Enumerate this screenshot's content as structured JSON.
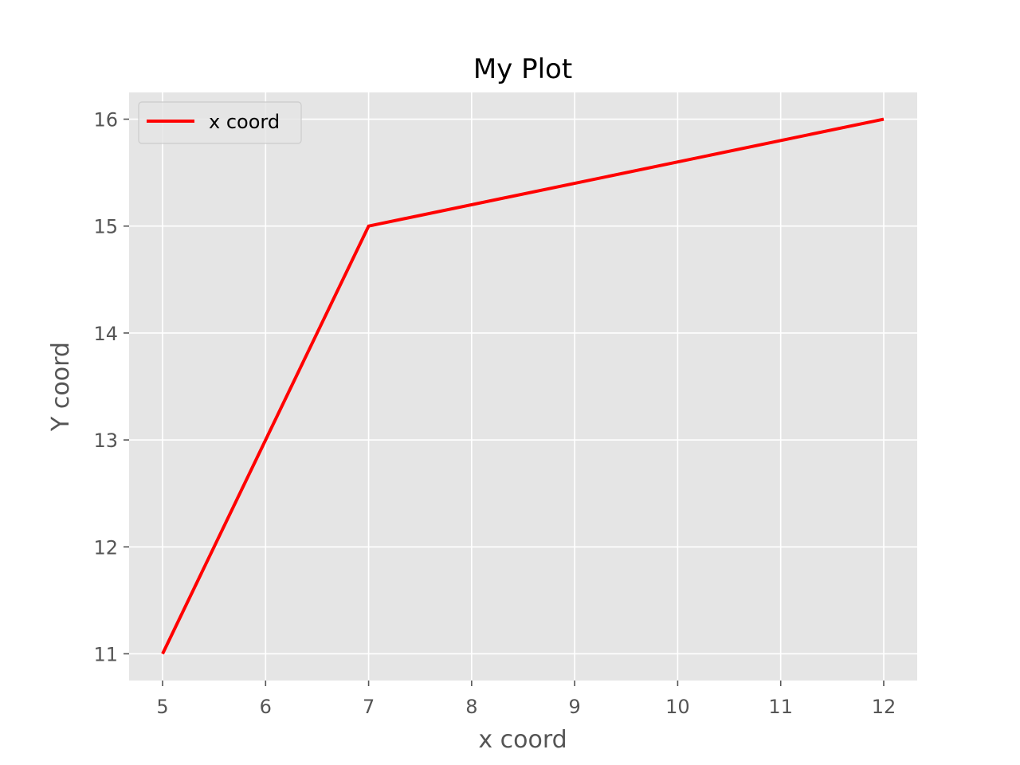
{
  "chart_data": {
    "type": "line",
    "title": "My Plot",
    "xlabel": "x coord",
    "ylabel": "Y coord",
    "x": [
      5,
      7,
      12
    ],
    "series": [
      {
        "name": "x coord",
        "values": [
          11,
          15,
          16
        ],
        "color": "#ff0000"
      }
    ],
    "xticks": [
      5,
      6,
      7,
      8,
      9,
      10,
      11,
      12
    ],
    "yticks": [
      11,
      12,
      13,
      14,
      15,
      16
    ],
    "xlim": [
      4.675,
      12.325
    ],
    "ylim": [
      10.75,
      16.25
    ],
    "grid": true,
    "legend_position": "upper-left",
    "style": "ggplot"
  },
  "colors": {
    "plot_background": "#e5e5e5",
    "grid": "#ffffff",
    "tick_text": "#555555",
    "line": "#ff0000"
  }
}
